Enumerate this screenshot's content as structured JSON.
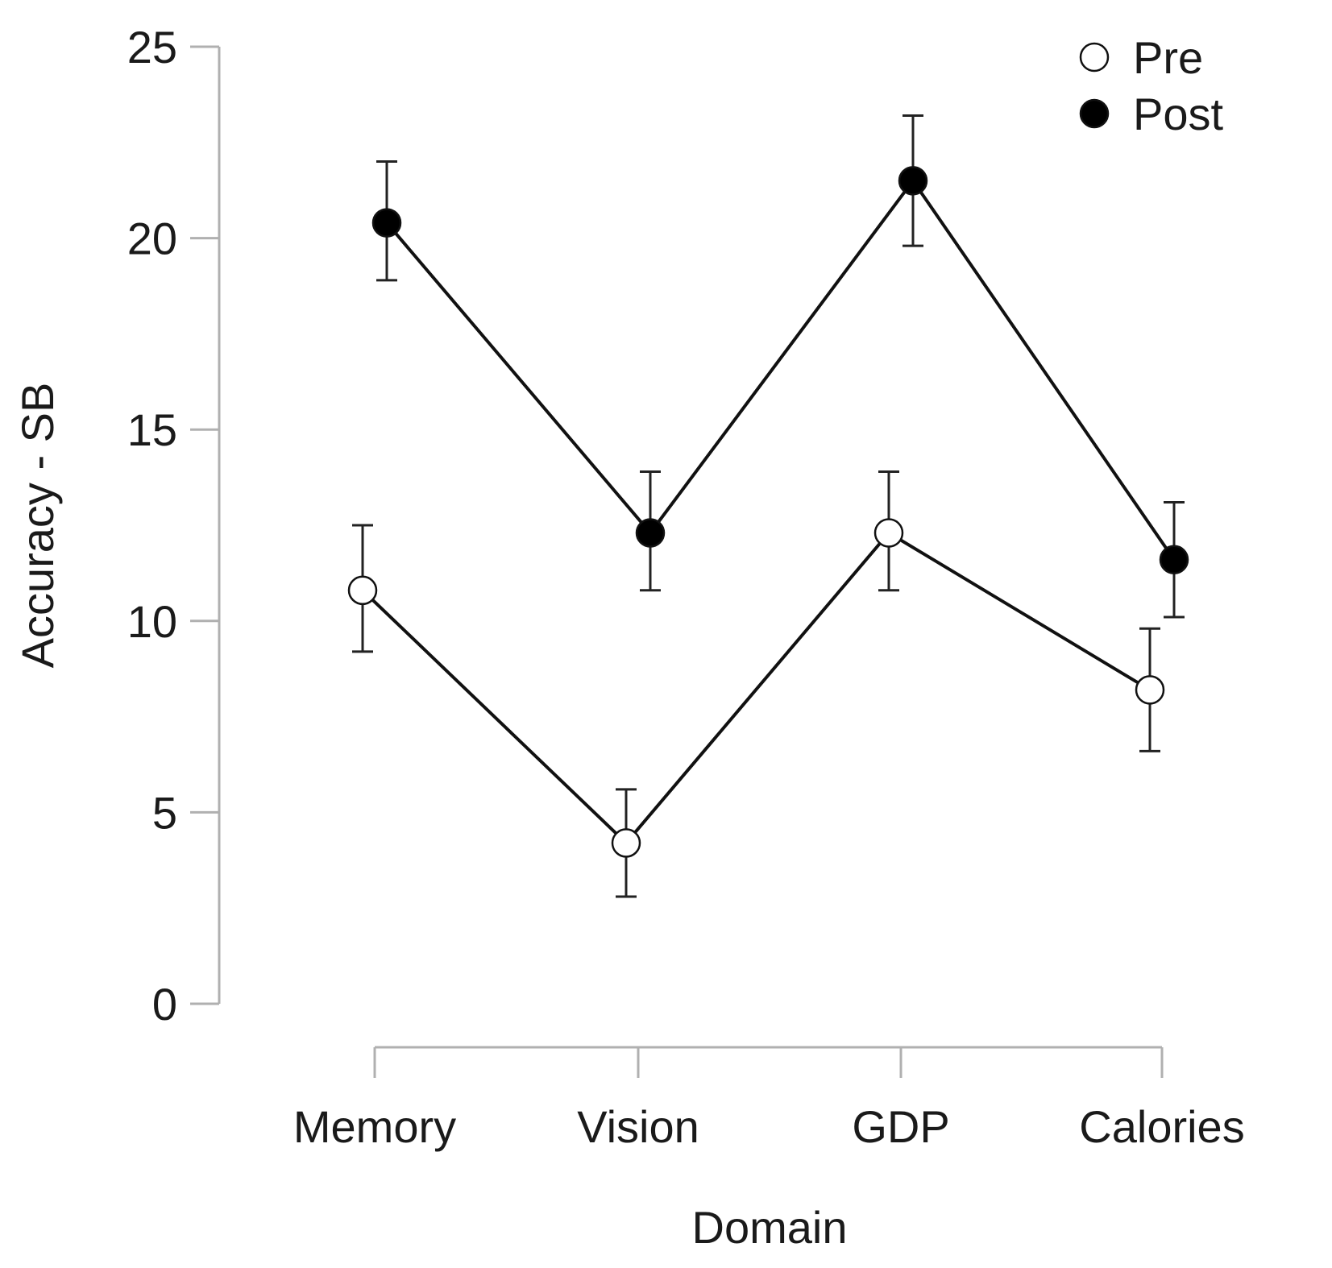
{
  "chart_data": {
    "type": "line",
    "xlabel": "Domain",
    "ylabel": "Accuracy - SB",
    "categories": [
      "Memory",
      "Vision",
      "GDP",
      "Calories"
    ],
    "ylim": [
      0,
      25
    ],
    "yticks": [
      0,
      5,
      10,
      15,
      20,
      25
    ],
    "grid": false,
    "legend_position": "top-right",
    "series": [
      {
        "name": "Pre",
        "marker": "open-circle",
        "color": "#ffffff",
        "values": [
          10.8,
          4.2,
          12.3,
          8.2
        ],
        "error_low": [
          9.2,
          2.8,
          10.8,
          6.6
        ],
        "error_high": [
          12.5,
          5.6,
          13.9,
          9.8
        ]
      },
      {
        "name": "Post",
        "marker": "filled-circle",
        "color": "#000000",
        "values": [
          20.4,
          12.3,
          21.5,
          11.6
        ],
        "error_low": [
          18.9,
          10.8,
          19.8,
          10.1
        ],
        "error_high": [
          22.0,
          13.9,
          23.2,
          13.1
        ]
      }
    ]
  }
}
